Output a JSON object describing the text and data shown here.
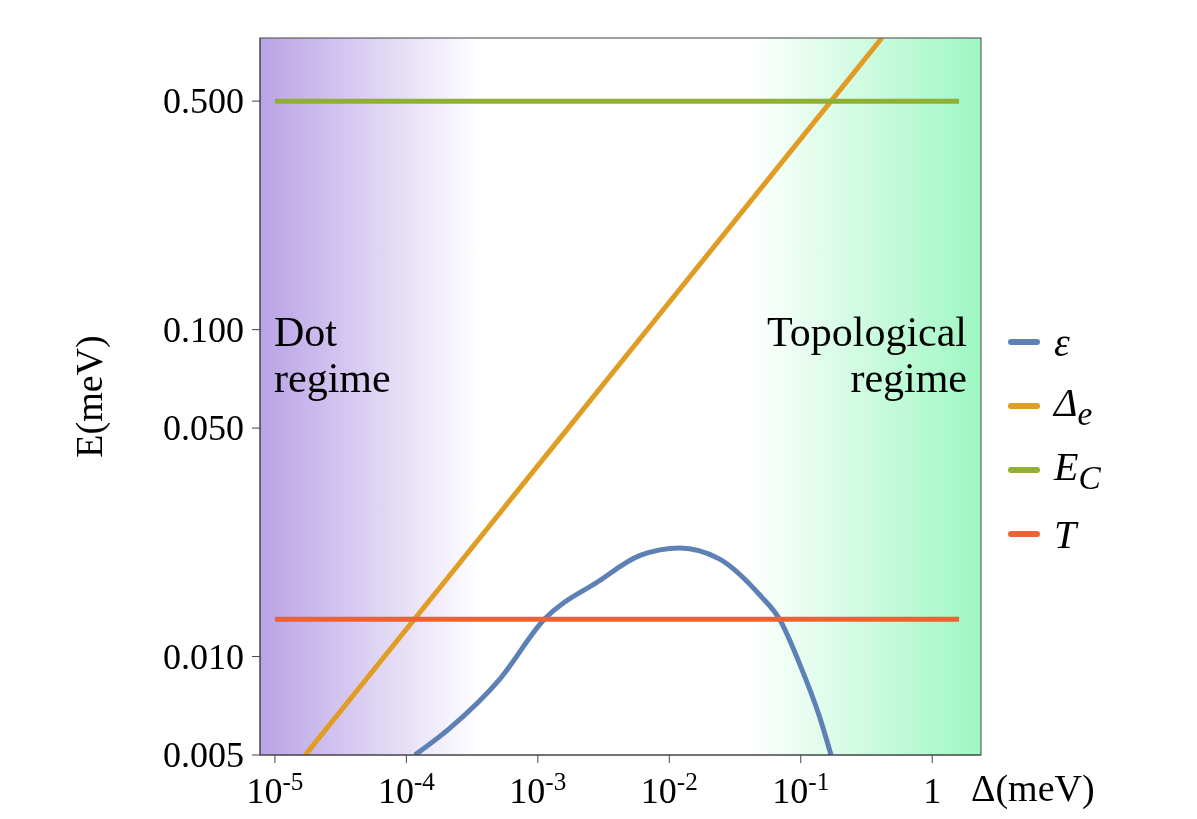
{
  "chart_data": {
    "type": "line",
    "xlabel": "Δ(meV)",
    "ylabel": "E(meV)",
    "log": "xy",
    "xlim": [
      7.7e-06,
      2.35
    ],
    "ylim": [
      0.005,
      0.78
    ],
    "xticks": [
      {
        "value": 1e-05,
        "label": "10$^{-5}$"
      },
      {
        "value": 0.0001,
        "label": "10$^{-4}$"
      },
      {
        "value": 0.001,
        "label": "10$^{-3}$"
      },
      {
        "value": 0.01,
        "label": "10$^{-2}$"
      },
      {
        "value": 0.1,
        "label": "10$^{-1}$"
      },
      1
    ],
    "yticks": [
      0.005,
      {
        "value": 0.01,
        "label": "0.010"
      },
      {
        "value": 0.05,
        "label": "0.050"
      },
      {
        "value": 0.1,
        "label": "0.100"
      },
      {
        "value": 0.5,
        "label": "0.500"
      }
    ],
    "legend": "right",
    "grid": false,
    "marker": "none",
    "line_style": "solid",
    "bands": [
      {
        "axis": "x",
        "from": 7.7e-06,
        "to": 0.00036,
        "label": "Dot regime",
        "color": "#b9a3e6"
      },
      {
        "axis": "x",
        "from": 0.04,
        "to": 2.35,
        "label": "Topological regime",
        "color": "#9ef7c2"
      }
    ],
    "series": [
      {
        "name": "ε",
        "color": "#5e81b5",
        "x": [
          0.000116,
          0.00021,
          0.00051,
          0.00112,
          0.0029,
          0.006,
          0.012,
          0.024,
          0.049,
          0.069,
          0.098,
          0.138,
          0.17
        ],
        "values": [
          0.005,
          0.006,
          0.0085,
          0.013,
          0.017,
          0.0204,
          0.0215,
          0.0199,
          0.0154,
          0.013,
          0.0095,
          0.0066,
          0.005
        ]
      },
      {
        "name": "Δ$_{e}$",
        "color": "#e19c24",
        "x": [
          1.7e-05,
          0.0017,
          0.17,
          0.414
        ],
        "values": [
          0.005,
          0.05,
          0.5,
          0.78
        ]
      },
      {
        "name": "E$_{C}$",
        "color": "#8fb032",
        "x": [
          1e-05,
          1.6
        ],
        "values": [
          0.5,
          0.5
        ]
      },
      {
        "name": "T",
        "color": "#eb6235",
        "x": [
          1e-05,
          1.6
        ],
        "values": [
          0.013,
          0.013
        ]
      }
    ]
  }
}
